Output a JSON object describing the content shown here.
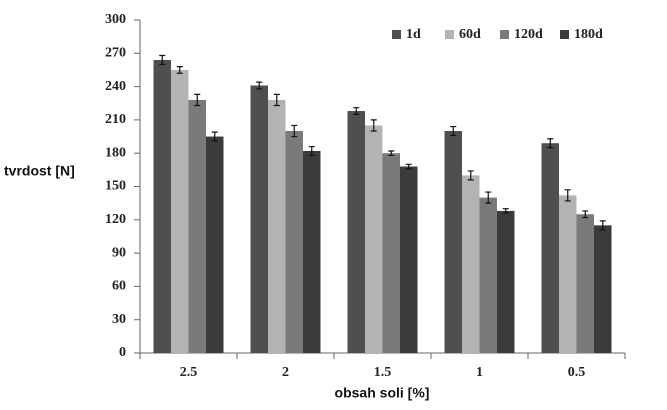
{
  "chart_data": {
    "type": "bar",
    "x_label": "obsah soli [%]",
    "y_label": "tvrdost [N]",
    "categories": [
      "2.5",
      "2",
      "1.5",
      "1",
      "0.5"
    ],
    "series": [
      {
        "name": "1d",
        "color": "#4f4f4f",
        "values": [
          264,
          241,
          218,
          200,
          189
        ],
        "errors": [
          4,
          3,
          3,
          4,
          4
        ]
      },
      {
        "name": "60d",
        "color": "#b3b3b3",
        "values": [
          255,
          228,
          205,
          160,
          142
        ],
        "errors": [
          3,
          5,
          5,
          4,
          5
        ]
      },
      {
        "name": "120d",
        "color": "#7a7a7a",
        "values": [
          228,
          200,
          180,
          140,
          125
        ],
        "errors": [
          5,
          5,
          2,
          5,
          3
        ]
      },
      {
        "name": "180d",
        "color": "#3b3b3b",
        "values": [
          195,
          182,
          168,
          128,
          115
        ],
        "errors": [
          4,
          4,
          2,
          2,
          4
        ]
      }
    ],
    "ylim": [
      0,
      300
    ],
    "yticks": [
      0,
      30,
      60,
      90,
      120,
      150,
      180,
      210,
      240,
      270,
      300
    ],
    "grid": false,
    "legend": "top-right"
  }
}
